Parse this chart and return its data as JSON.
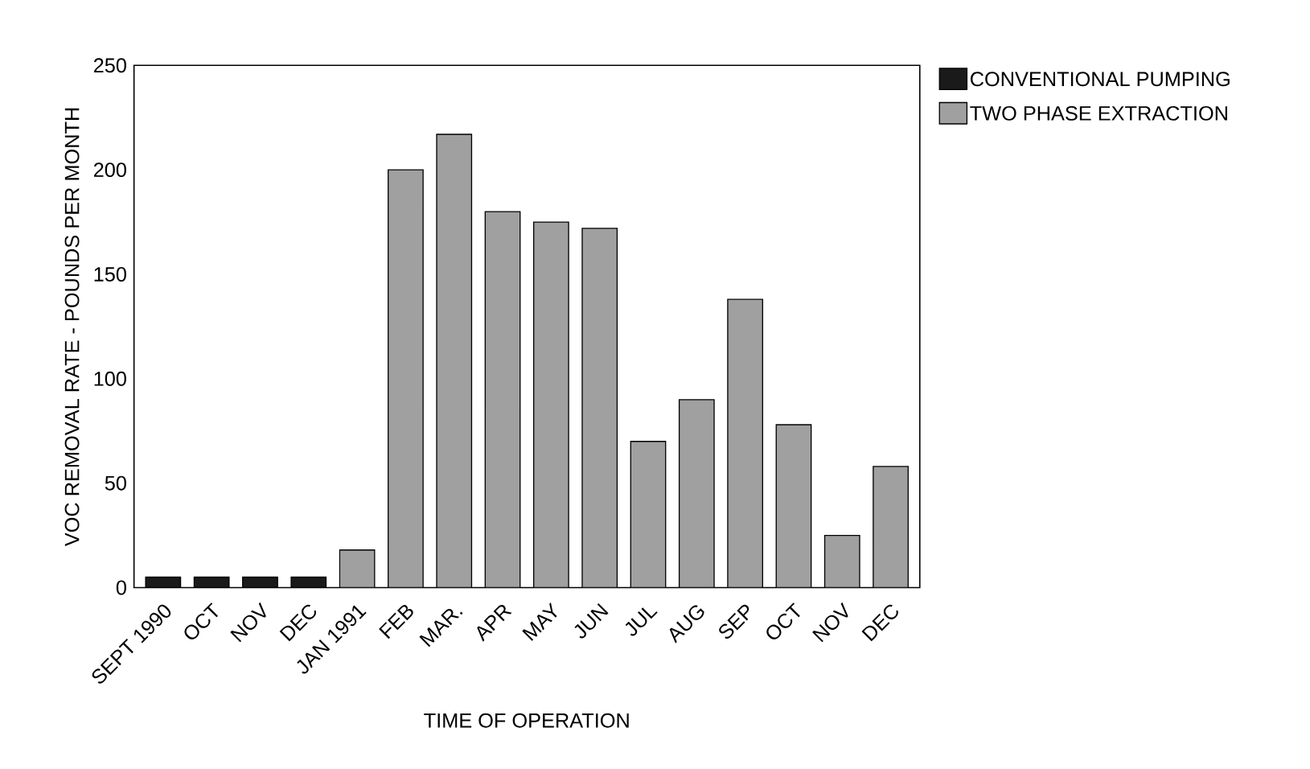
{
  "chart_data": {
    "type": "bar",
    "xlabel": "TIME OF OPERATION",
    "ylabel": "VOC REMOVAL RATE  -  POUNDS PER MONTH",
    "categories": [
      "SEPT 1990",
      "OCT",
      "NOV",
      "DEC",
      "JAN 1991",
      "FEB",
      "MAR.",
      "APR",
      "MAY",
      "JUN",
      "JUL",
      "AUG",
      "SEP",
      "OCT",
      "NOV",
      "DEC"
    ],
    "series": [
      {
        "name": "CONVENTIONAL PUMPING",
        "color": "#1a1a1a",
        "values": [
          5,
          5,
          5,
          5,
          null,
          null,
          null,
          null,
          null,
          null,
          null,
          null,
          null,
          null,
          null,
          null
        ]
      },
      {
        "name": "TWO PHASE EXTRACTION",
        "color": "#a0a0a0",
        "values": [
          null,
          null,
          null,
          null,
          18,
          200,
          217,
          180,
          175,
          172,
          70,
          90,
          138,
          78,
          25,
          58
        ]
      }
    ],
    "ylim": [
      0,
      250
    ],
    "yticks": [
      0,
      50,
      100,
      150,
      200,
      250
    ],
    "legend": "top right",
    "grid": false
  }
}
